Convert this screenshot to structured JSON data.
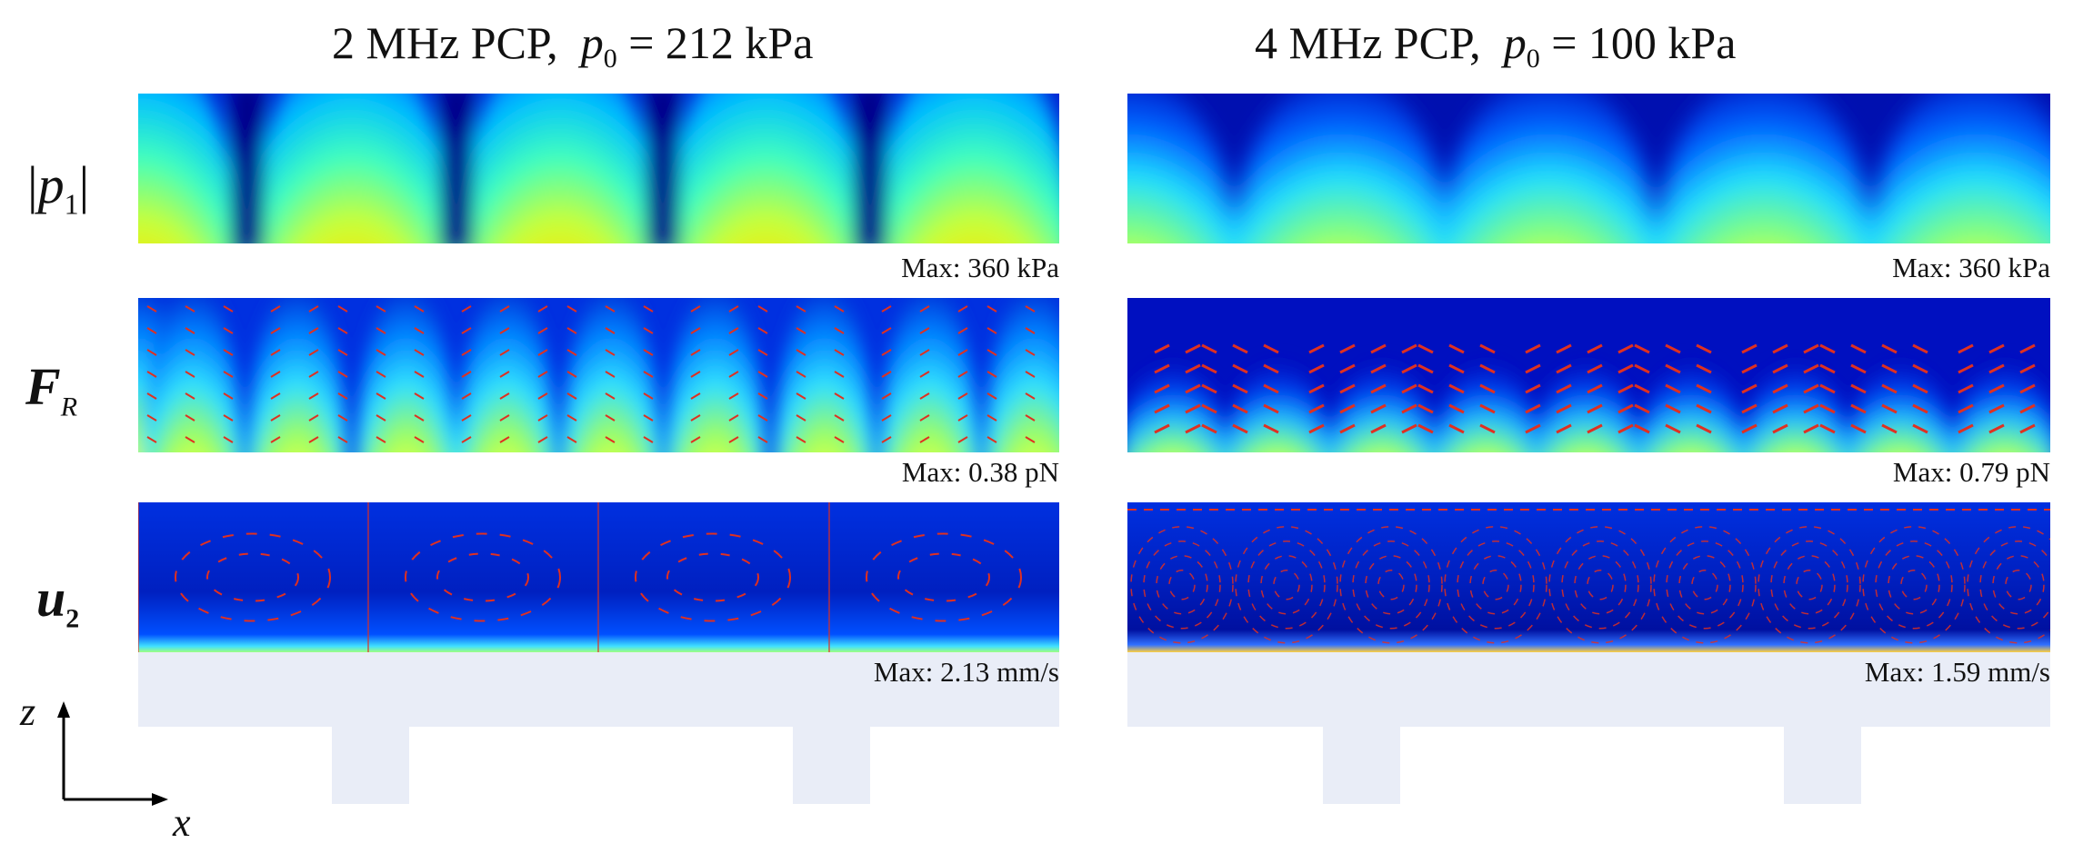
{
  "columns": [
    {
      "title_prefix": "2 MHz PCP,",
      "param_symbol": "p",
      "param_sub": "0",
      "param_value": "= 212 kPa"
    },
    {
      "title_prefix": "4 MHz PCP,",
      "param_symbol": "p",
      "param_sub": "0",
      "param_value": "= 100 kPa"
    }
  ],
  "rows": [
    {
      "label_main": "p",
      "label_sub": "1",
      "left_max": "Max: 360 kPa",
      "right_max": "Max: 360 kPa"
    },
    {
      "label_main": "F",
      "label_sub": "R",
      "left_max": "Max: 0.38 pN",
      "right_max": "Max: 0.79 pN"
    },
    {
      "label_main": "u",
      "label_sub": "2",
      "left_max": "Max: 2.13 mm/s",
      "right_max": "Max: 1.59 mm/s"
    }
  ],
  "axes": {
    "z_label": "z",
    "x_label": "x"
  },
  "colors": {
    "colormap": [
      "#00007f",
      "#0000ff",
      "#00bfff",
      "#7fff7f",
      "#ffff00",
      "#ff7f00",
      "#e00000"
    ],
    "arrow": "#e03020",
    "substrate": "#e9edf7"
  }
}
